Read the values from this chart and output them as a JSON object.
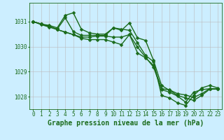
{
  "title": "Graphe pression niveau de la mer (hPa)",
  "bg_color": "#cceeff",
  "grid_color": "#bbbbbb",
  "line_color": "#1a6b1a",
  "marker_color": "#1a6b1a",
  "xlim": [
    -0.5,
    23.5
  ],
  "ylim": [
    1027.5,
    1031.75
  ],
  "yticks": [
    1028,
    1029,
    1030,
    1031
  ],
  "xticks": [
    0,
    1,
    2,
    3,
    4,
    5,
    6,
    7,
    8,
    9,
    10,
    11,
    12,
    13,
    14,
    15,
    16,
    17,
    18,
    19,
    20,
    21,
    22,
    23
  ],
  "series": [
    [
      1031.0,
      1030.9,
      1030.85,
      1030.75,
      1031.25,
      1031.35,
      1030.7,
      1030.55,
      1030.5,
      1030.5,
      1030.75,
      1030.7,
      1030.65,
      1030.15,
      1029.65,
      1029.4,
      1028.05,
      1027.95,
      1027.75,
      1027.65,
      1028.05,
      1028.35,
      1028.45,
      1028.35
    ],
    [
      1031.0,
      1030.9,
      1030.8,
      1030.7,
      1031.15,
      1030.6,
      1030.45,
      1030.45,
      1030.45,
      1030.45,
      1030.75,
      1030.65,
      1030.95,
      1030.35,
      1030.25,
      1029.45,
      1028.45,
      1028.25,
      1028.05,
      1027.95,
      1027.85,
      1028.05,
      1028.3,
      1028.3
    ],
    [
      1031.0,
      1030.9,
      1030.82,
      1030.68,
      1030.58,
      1030.48,
      1030.38,
      1030.38,
      1030.42,
      1030.42,
      1030.38,
      1030.38,
      1030.48,
      1029.75,
      1029.55,
      1029.25,
      1028.32,
      1028.27,
      1028.12,
      1028.07,
      1027.97,
      1028.12,
      1028.32,
      1028.32
    ],
    [
      1031.0,
      1030.88,
      1030.78,
      1030.68,
      1030.58,
      1030.48,
      1030.33,
      1030.28,
      1030.28,
      1030.28,
      1030.18,
      1030.08,
      1030.48,
      1029.98,
      1029.58,
      1029.18,
      1028.28,
      1028.18,
      1028.02,
      1027.78,
      1028.18,
      1028.28,
      1028.32,
      1028.32
    ]
  ],
  "marker_size": 2.5,
  "linewidth": 1.0,
  "tick_fontsize": 5.5,
  "title_fontsize": 7.0
}
